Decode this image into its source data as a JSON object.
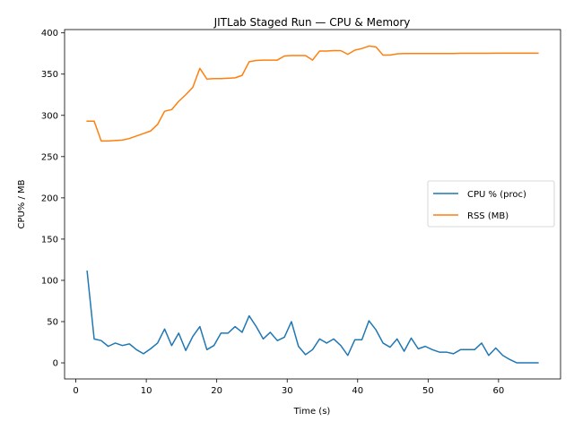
{
  "chart_data": {
    "type": "line",
    "title": "JITLab Staged Run — CPU & Memory",
    "xlabel": "Time (s)",
    "ylabel": "CPU% / MB",
    "xlim": [
      -1.6,
      68.8
    ],
    "ylim": [
      -19.5,
      404
    ],
    "xticks": [
      0,
      10,
      20,
      30,
      40,
      50,
      60
    ],
    "yticks": [
      0,
      50,
      100,
      150,
      200,
      250,
      300,
      350,
      400
    ],
    "grid": false,
    "legend_position": "center-right",
    "series": [
      {
        "name": "CPU % (proc)",
        "color": "#1f77b4",
        "x": [
          1.6,
          2.6,
          3.6,
          4.6,
          5.6,
          6.6,
          7.6,
          8.6,
          9.6,
          10.6,
          11.6,
          12.6,
          13.6,
          14.6,
          15.6,
          16.6,
          17.6,
          18.6,
          19.6,
          20.6,
          21.6,
          22.6,
          23.6,
          24.6,
          25.6,
          26.6,
          27.6,
          28.6,
          29.6,
          30.6,
          31.6,
          32.6,
          33.6,
          34.6,
          35.6,
          36.6,
          37.6,
          38.6,
          39.6,
          40.6,
          41.6,
          42.6,
          43.6,
          44.6,
          45.6,
          46.6,
          47.6,
          48.6,
          49.6,
          50.6,
          51.6,
          52.6,
          53.6,
          54.6,
          55.6,
          56.6,
          57.6,
          58.6,
          59.6,
          60.6,
          61.6,
          62.6,
          63.6,
          64.6,
          65.6
        ],
        "values": [
          111,
          29,
          27,
          20,
          24,
          21,
          23,
          16,
          11,
          17,
          24,
          41,
          21,
          36,
          15,
          32,
          44,
          16,
          21,
          36,
          36,
          44,
          37,
          57,
          44,
          29,
          37,
          27,
          31,
          50,
          20,
          10,
          16,
          29,
          24,
          29,
          21,
          9,
          28,
          28,
          51,
          40,
          24,
          19,
          29,
          14,
          30,
          17,
          20,
          16,
          13,
          13,
          11,
          16,
          16,
          16,
          24,
          9,
          18,
          9,
          4,
          0,
          0,
          0,
          0
        ]
      },
      {
        "name": "RSS (MB)",
        "color": "#ff7f0e",
        "x": [
          1.6,
          2.6,
          3.6,
          4.6,
          5.6,
          6.6,
          7.6,
          8.6,
          9.6,
          10.6,
          11.6,
          12.6,
          13.6,
          14.6,
          15.6,
          16.6,
          17.6,
          18.6,
          19.6,
          20.6,
          21.6,
          22.6,
          23.6,
          24.6,
          25.6,
          26.6,
          27.6,
          28.6,
          29.6,
          30.6,
          31.6,
          32.6,
          33.6,
          34.6,
          35.6,
          36.6,
          37.6,
          38.6,
          39.6,
          40.6,
          41.6,
          42.6,
          43.6,
          44.6,
          45.6,
          46.6,
          47.6,
          48.6,
          49.6,
          50.6,
          51.6,
          52.6,
          53.6,
          54.6,
          55.6,
          56.6,
          57.6,
          58.6,
          59.6,
          60.6,
          61.6,
          62.6,
          63.6,
          64.6,
          65.6
        ],
        "values": [
          293,
          293,
          269,
          269,
          269.5,
          270,
          272,
          275,
          278,
          281,
          289,
          305,
          307,
          317,
          325,
          334,
          357,
          344,
          344.5,
          344.5,
          345,
          345.5,
          348.5,
          365,
          366.5,
          367,
          367,
          367,
          372,
          372.5,
          372.5,
          372.5,
          367,
          378,
          378,
          378.5,
          378.5,
          374,
          379,
          381,
          384,
          383,
          373,
          373,
          374.5,
          375,
          375,
          375,
          375,
          375,
          375,
          375,
          375,
          375.2,
          375.2,
          375.2,
          375.2,
          375.2,
          375.4,
          375.4,
          375.4,
          375.4,
          375.4,
          375.4,
          375.4
        ]
      }
    ]
  }
}
